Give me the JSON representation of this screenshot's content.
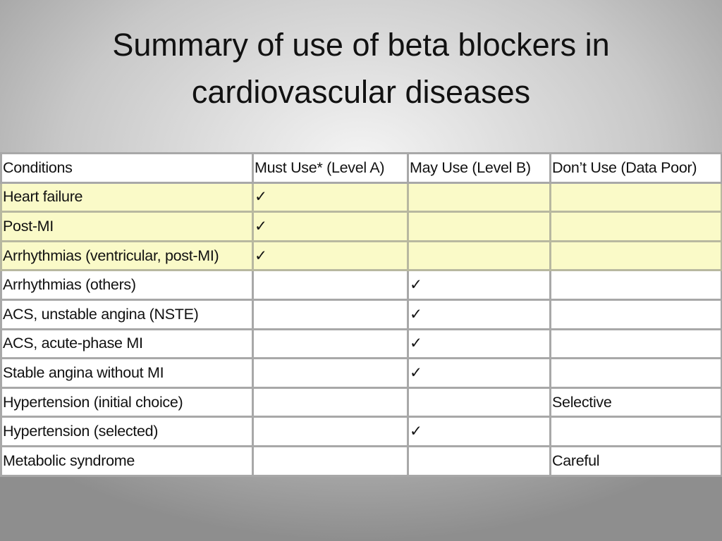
{
  "title": "Summary of use of beta blockers in cardiovascular diseases",
  "table": {
    "header": [
      "Conditions",
      "Must Use* (Level A)",
      "May Use (Level B)",
      "Don’t Use (Data Poor)"
    ],
    "rows": [
      [
        "Heart failure",
        "✓",
        null,
        null
      ],
      [
        "Post-MI",
        "✓",
        null,
        null
      ],
      [
        "Arrhythmias (ventricular, post-MI)",
        "✓",
        null,
        null
      ],
      [
        "Arrhythmias (others)",
        null,
        "✓",
        null
      ],
      [
        "ACS, unstable angina (NSTE)",
        null,
        "✓",
        null
      ],
      [
        "ACS, acute-phase MI",
        null,
        "✓",
        null
      ],
      [
        "Stable angina without MI",
        null,
        "✓",
        null
      ],
      [
        "Hypertension (initial choice)",
        null,
        null,
        "Selective"
      ],
      [
        "Hypertension (selected)",
        null,
        "✓",
        null
      ],
      [
        "Metabolic syndrome",
        null,
        null,
        "Careful"
      ]
    ]
  }
}
